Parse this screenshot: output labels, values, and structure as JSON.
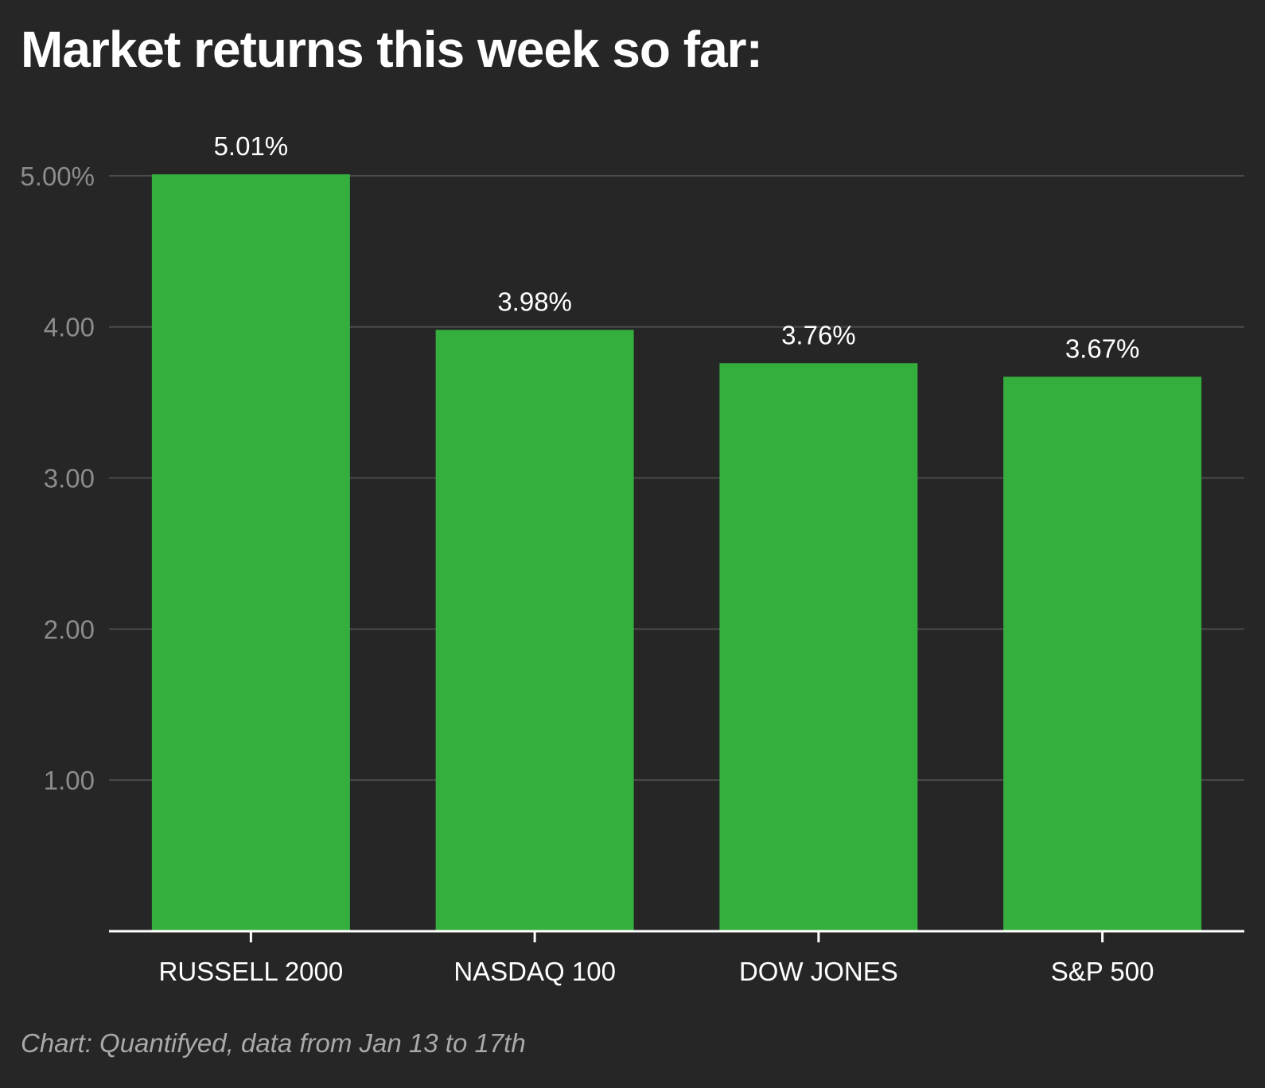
{
  "chart_data": {
    "type": "bar",
    "title": "Market returns this week so far:",
    "categories": [
      "RUSSELL 2000",
      "NASDAQ 100",
      "DOW JONES",
      "S&P 500"
    ],
    "values": [
      5.01,
      3.98,
      3.76,
      3.67
    ],
    "value_labels": [
      "5.01%",
      "3.98%",
      "3.76%",
      "3.67%"
    ],
    "y_ticks": [
      {
        "value": 1,
        "label": "1.00"
      },
      {
        "value": 2,
        "label": "2.00"
      },
      {
        "value": 3,
        "label": "3.00"
      },
      {
        "value": 4,
        "label": "4.00"
      },
      {
        "value": 5,
        "label": "5.00%"
      }
    ],
    "ylim": [
      0,
      5.01
    ],
    "xlabel": "",
    "ylabel": "",
    "grid": true,
    "legend": "none",
    "bar_color": "#34ae3c",
    "source": "Chart: Quantifyed, data from Jan 13 to 17th"
  }
}
